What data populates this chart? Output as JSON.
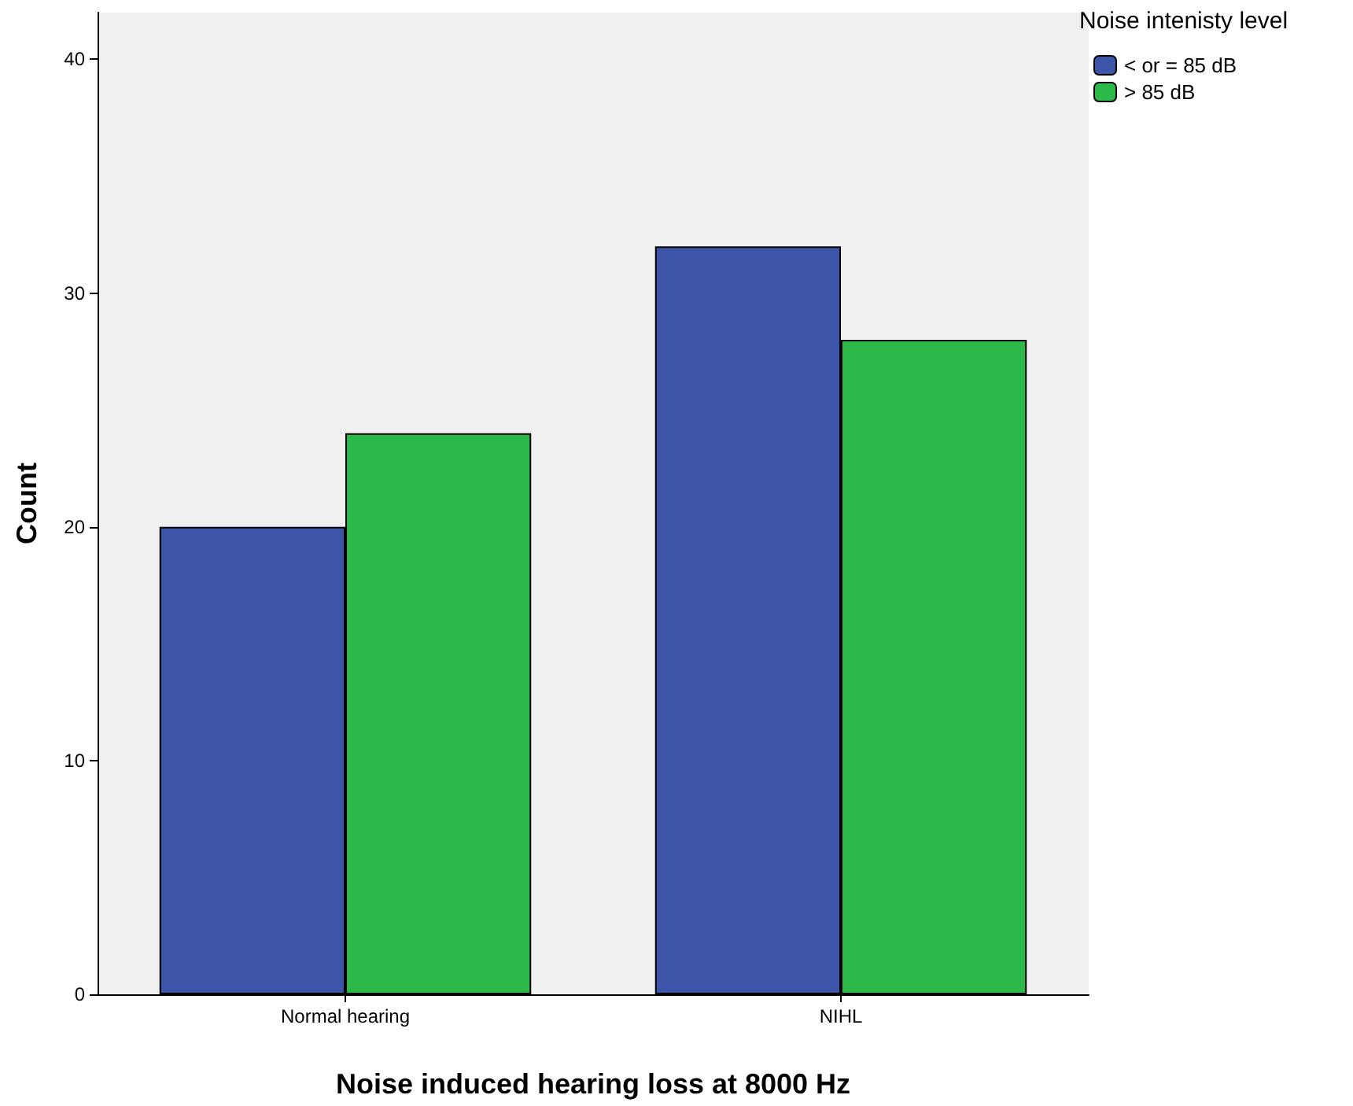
{
  "chart_data": {
    "type": "bar",
    "xlabel": "Noise induced hearing loss at 8000 Hz",
    "ylabel": "Count",
    "legend_title": "Noise intenisty level",
    "categories": [
      "Normal hearing",
      "NIHL"
    ],
    "series": [
      {
        "name": "< or = 85 dB",
        "color": "#3d55a8",
        "values": [
          20,
          32
        ]
      },
      {
        "name": "> 85 dB",
        "color": "#2db84a",
        "values": [
          24,
          28
        ]
      }
    ],
    "ylim": [
      0,
      42
    ],
    "yticks": [
      0,
      10,
      20,
      30,
      40
    ],
    "grid": false,
    "legend": "top right"
  }
}
